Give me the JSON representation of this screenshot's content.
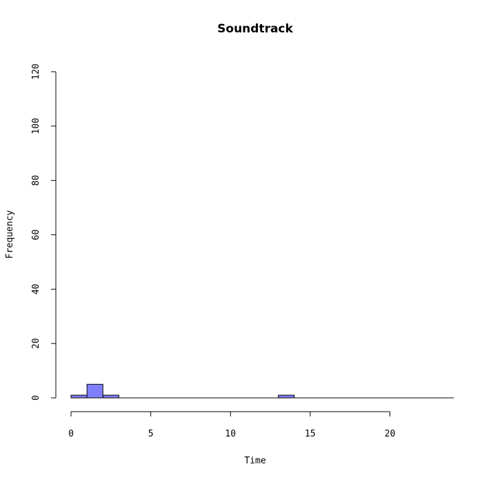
{
  "chart_data": {
    "type": "histogram",
    "title": "Soundtrack",
    "xlabel": "Time",
    "ylabel": "Frequency",
    "xlim": [
      0,
      24
    ],
    "ylim": [
      0,
      120
    ],
    "x_ticks": [
      0,
      5,
      10,
      15,
      20
    ],
    "y_ticks": [
      0,
      20,
      40,
      60,
      80,
      100,
      120
    ],
    "bin_width": 1,
    "bins": [
      {
        "start": 0,
        "end": 1,
        "count": 1
      },
      {
        "start": 1,
        "end": 2,
        "count": 5
      },
      {
        "start": 2,
        "end": 3,
        "count": 1
      },
      {
        "start": 13,
        "end": 14,
        "count": 1
      }
    ],
    "colors": {
      "bar_fill": "#8080ff",
      "bar_stroke": "#000000",
      "baseline": "#000000"
    }
  }
}
